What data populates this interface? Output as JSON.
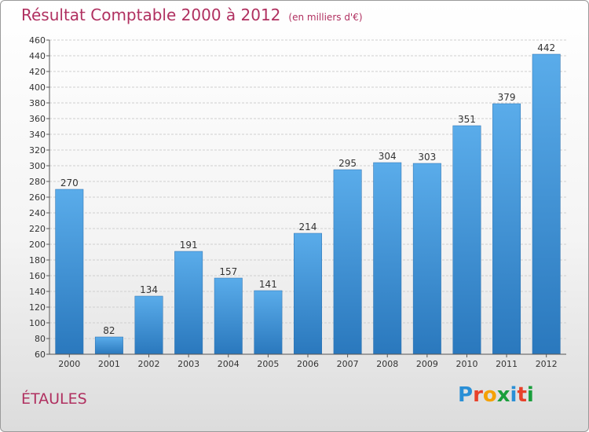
{
  "header": {
    "title": "Résultat Comptable 2000 à 2012",
    "unit": "(en milliers d'€)"
  },
  "footer": {
    "place": "ÉTAULES"
  },
  "logo": {
    "letters": [
      "P",
      "r",
      "o",
      "x",
      "i",
      "t",
      "i"
    ],
    "colors": [
      "#2a8fd6",
      "#e8412a",
      "#f5a100",
      "#1a9e3c",
      "#2a8fd6",
      "#e8412a",
      "#1a9e3c"
    ]
  },
  "chart_data": {
    "type": "bar",
    "title": "Résultat Comptable 2000 à 2012",
    "subtitle": "(en milliers d'€)",
    "categories": [
      "2000",
      "2001",
      "2002",
      "2003",
      "2004",
      "2005",
      "2006",
      "2007",
      "2008",
      "2009",
      "2010",
      "2011",
      "2012"
    ],
    "values": [
      270,
      82,
      134,
      191,
      157,
      141,
      214,
      295,
      304,
      303,
      351,
      379,
      442
    ],
    "ylim": [
      60,
      460
    ],
    "yticks": [
      60,
      80,
      100,
      120,
      140,
      160,
      180,
      200,
      220,
      240,
      260,
      280,
      300,
      320,
      340,
      360,
      380,
      400,
      420,
      440,
      460
    ],
    "grid": true,
    "bar_color": "#3d92d6"
  }
}
